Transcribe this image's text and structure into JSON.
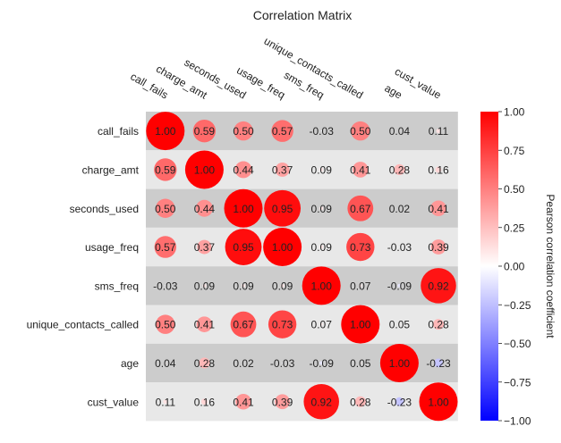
{
  "chart_data": {
    "type": "heatmap",
    "title": "Correlation Matrix",
    "labels": [
      "call_fails",
      "charge_amt",
      "seconds_used",
      "usage_freq",
      "sms_freq",
      "unique_contacts_called",
      "age",
      "cust_value"
    ],
    "matrix": [
      [
        1.0,
        0.59,
        0.5,
        0.57,
        -0.03,
        0.5,
        0.04,
        0.11
      ],
      [
        0.59,
        1.0,
        0.44,
        0.37,
        0.09,
        0.41,
        0.28,
        0.16
      ],
      [
        0.5,
        0.44,
        1.0,
        0.95,
        0.09,
        0.67,
        0.02,
        0.41
      ],
      [
        0.57,
        0.37,
        0.95,
        1.0,
        0.09,
        0.73,
        -0.03,
        0.39
      ],
      [
        -0.03,
        0.09,
        0.09,
        0.09,
        1.0,
        0.07,
        -0.09,
        0.92
      ],
      [
        0.5,
        0.41,
        0.67,
        0.73,
        0.07,
        1.0,
        0.05,
        0.28
      ],
      [
        0.04,
        0.28,
        0.02,
        -0.03,
        -0.09,
        0.05,
        1.0,
        -0.23
      ],
      [
        0.11,
        0.16,
        0.41,
        0.39,
        0.92,
        0.28,
        -0.23,
        1.0
      ]
    ],
    "display_labels": [
      [
        "1.00",
        "0.59",
        "0.50",
        "0.57",
        "-0.03",
        "0.50",
        "0.04",
        "0.11"
      ],
      [
        "0.59",
        "1.00",
        "0.44",
        "0.37",
        "0.09",
        "0.41",
        "0.28",
        "0.16"
      ],
      [
        "0.50",
        "0.44",
        "1.00",
        "0.95",
        "0.09",
        "0.67",
        "0.02",
        "0.41"
      ],
      [
        "0.57",
        "0.37",
        "0.95",
        "1.00",
        "0.09",
        "0.73",
        "-0.03",
        "0.39"
      ],
      [
        "-0.03",
        "0.09",
        "0.09",
        "0.09",
        "1.00",
        "0.07",
        "-0.09",
        "0.92"
      ],
      [
        "0.50",
        "0.41",
        "0.67",
        "0.73",
        "0.07",
        "1.00",
        "0.05",
        "0.28"
      ],
      [
        "0.04",
        "0.28",
        "0.02",
        "-0.03",
        "-0.09",
        "0.05",
        "1.00",
        "-0.23"
      ],
      [
        "0.11",
        "0.16",
        "0.41",
        "0.39",
        "0.92",
        "0.28",
        "-0.23",
        "1.00"
      ]
    ],
    "colorbar": {
      "label": "Pearson correlation coefficient",
      "range": [
        -1.0,
        1.0
      ],
      "ticks": [
        "1.00",
        "0.75",
        "0.50",
        "0.25",
        "0.00",
        "−0.25",
        "−0.50",
        "−0.75",
        "−1.00"
      ],
      "colormap": "bwr",
      "colors": {
        "negative": "#0000ff",
        "zero": "#ffffff",
        "positive": "#ff0000"
      }
    },
    "row_band_colors": [
      "#cccccc",
      "#e8e8e8"
    ],
    "marker_size_by": "abs(value)"
  }
}
